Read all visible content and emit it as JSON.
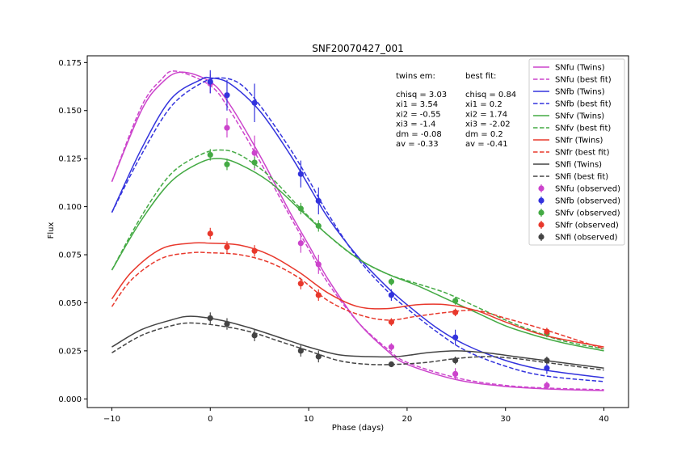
{
  "chart_data": {
    "type": "line",
    "title": "SNF20070427_001",
    "xlabel": "Phase (days)",
    "ylabel": "Flux",
    "xlim": [
      -12.5,
      42.5
    ],
    "ylim": [
      -0.0045,
      0.1785
    ],
    "xticks": [
      -10,
      0,
      10,
      20,
      30,
      40
    ],
    "xtick_labels": [
      "−10",
      "0",
      "10",
      "20",
      "30",
      "40"
    ],
    "yticks": [
      0.0,
      0.025,
      0.05,
      0.075,
      0.1,
      0.125,
      0.15,
      0.175
    ],
    "ytick_labels": [
      "0.000",
      "0.025",
      "0.050",
      "0.075",
      "0.100",
      "0.125",
      "0.150",
      "0.175"
    ],
    "grid": false,
    "legend_placement": "top-right",
    "annotations": [
      {
        "heading": "twins em:",
        "lines": [
          "chisq = 3.03",
          "xi1 = 3.54",
          "xi2 = -0.55",
          "xi3 = -1.4",
          "dm = -0.08",
          "av = -0.33"
        ]
      },
      {
        "heading": "best fit:",
        "lines": [
          "chisq = 0.84",
          "xi1 = 0.2",
          "xi2 = 1.74",
          "xi3 = -2.02",
          "dm = 0.2",
          "av = -0.41"
        ]
      }
    ],
    "bands": [
      {
        "band": "SNfu",
        "color": "#cc44cc",
        "twins": {
          "name": "SNfu (Twins)",
          "x": [
            -10,
            -7,
            -5,
            -3,
            0,
            2,
            5,
            8,
            10,
            12,
            15,
            18,
            20,
            25,
            30,
            35,
            40
          ],
          "y": [
            0.113,
            0.15,
            0.164,
            0.17,
            0.165,
            0.153,
            0.127,
            0.098,
            0.08,
            0.062,
            0.04,
            0.025,
            0.018,
            0.01,
            0.0065,
            0.005,
            0.0043
          ]
        },
        "best_fit": {
          "name": "SNfu (best fit)",
          "x": [
            -10,
            -7,
            -5,
            -3.5,
            0,
            2,
            5,
            8,
            10,
            12,
            15,
            18,
            20,
            25,
            30,
            35,
            40
          ],
          "y": [
            0.113,
            0.152,
            0.166,
            0.1705,
            0.163,
            0.15,
            0.124,
            0.096,
            0.078,
            0.06,
            0.04,
            0.026,
            0.019,
            0.011,
            0.007,
            0.0055,
            0.0048
          ]
        },
        "observed": {
          "name": "SNfu (observed)",
          "x": [
            0,
            1.7,
            4.5,
            9.2,
            11,
            18.4,
            24.9,
            34.2
          ],
          "y": [
            0.164,
            0.141,
            0.128,
            0.081,
            0.07,
            0.027,
            0.013,
            0.007
          ],
          "err": [
            0.005,
            0.005,
            0.009,
            0.005,
            0.005,
            0.002,
            0.003,
            0.002
          ]
        }
      },
      {
        "band": "SNfb",
        "color": "#3333dd",
        "twins": {
          "name": "SNfb (Twins)",
          "x": [
            -10,
            -7,
            -4,
            -1,
            0,
            2,
            5,
            8,
            10,
            12,
            15,
            18,
            20,
            23,
            26,
            30,
            34,
            40
          ],
          "y": [
            0.097,
            0.13,
            0.156,
            0.166,
            0.167,
            0.164,
            0.15,
            0.128,
            0.111,
            0.094,
            0.074,
            0.058,
            0.049,
            0.037,
            0.028,
            0.02,
            0.015,
            0.011
          ]
        },
        "best_fit": {
          "name": "SNfb (best fit)",
          "x": [
            -10,
            -7,
            -4,
            -1,
            1,
            3,
            5,
            8,
            10,
            12,
            15,
            18,
            20,
            23,
            26,
            30,
            34,
            40
          ],
          "y": [
            0.097,
            0.127,
            0.152,
            0.164,
            0.167,
            0.164,
            0.153,
            0.131,
            0.114,
            0.096,
            0.073,
            0.056,
            0.047,
            0.035,
            0.025,
            0.017,
            0.012,
            0.009
          ]
        },
        "observed": {
          "name": "SNfb (observed)",
          "x": [
            0,
            1.7,
            4.5,
            9.2,
            11,
            18.4,
            24.9,
            34.2
          ],
          "y": [
            0.165,
            0.158,
            0.154,
            0.117,
            0.103,
            0.054,
            0.032,
            0.016
          ],
          "err": [
            0.006,
            0.008,
            0.01,
            0.007,
            0.007,
            0.003,
            0.004,
            0.003
          ]
        }
      },
      {
        "band": "SNfv",
        "color": "#44aa44",
        "twins": {
          "name": "SNfv (Twins)",
          "x": [
            -10,
            -7,
            -4,
            -1,
            1,
            3,
            6,
            9,
            12,
            15,
            18,
            21,
            24,
            27,
            30,
            33,
            36,
            40
          ],
          "y": [
            0.067,
            0.093,
            0.113,
            0.123,
            0.125,
            0.122,
            0.113,
            0.099,
            0.085,
            0.073,
            0.065,
            0.059,
            0.052,
            0.045,
            0.038,
            0.033,
            0.029,
            0.025
          ]
        },
        "best_fit": {
          "name": "SNfv (best fit)",
          "x": [
            -10,
            -7,
            -4,
            -1,
            1,
            3,
            6,
            9,
            12,
            15,
            18,
            21,
            24,
            27,
            30,
            33,
            36,
            40
          ],
          "y": [
            0.067,
            0.095,
            0.117,
            0.127,
            0.1295,
            0.127,
            0.116,
            0.1,
            0.085,
            0.073,
            0.065,
            0.06,
            0.055,
            0.048,
            0.041,
            0.035,
            0.03,
            0.026
          ]
        },
        "observed": {
          "name": "SNfv (observed)",
          "x": [
            0,
            1.7,
            4.5,
            9.2,
            11,
            18.4,
            24.9,
            34.2
          ],
          "y": [
            0.127,
            0.122,
            0.123,
            0.099,
            0.09,
            0.061,
            0.051,
            0.034
          ],
          "err": [
            0.003,
            0.003,
            0.003,
            0.003,
            0.003,
            0.002,
            0.002,
            0.002
          ]
        }
      },
      {
        "band": "SNfr",
        "color": "#e8382c",
        "twins": {
          "name": "SNfr (Twins)",
          "x": [
            -10,
            -8,
            -5,
            -2,
            0,
            3,
            6,
            9,
            12,
            15,
            18,
            21,
            24,
            27,
            30,
            34,
            40
          ],
          "y": [
            0.052,
            0.066,
            0.078,
            0.081,
            0.081,
            0.08,
            0.075,
            0.066,
            0.055,
            0.048,
            0.047,
            0.049,
            0.049,
            0.046,
            0.04,
            0.033,
            0.027
          ]
        },
        "best_fit": {
          "name": "SNfr (best fit)",
          "x": [
            -10,
            -8,
            -5,
            -2,
            0,
            3,
            6,
            9,
            12,
            15,
            18,
            21,
            24,
            27,
            30,
            34,
            40
          ],
          "y": [
            0.048,
            0.062,
            0.073,
            0.076,
            0.076,
            0.075,
            0.071,
            0.063,
            0.051,
            0.044,
            0.041,
            0.043,
            0.045,
            0.046,
            0.042,
            0.036,
            0.026
          ]
        },
        "observed": {
          "name": "SNfr (observed)",
          "x": [
            0,
            1.7,
            4.5,
            9.2,
            11,
            18.4,
            24.9,
            34.2
          ],
          "y": [
            0.086,
            0.079,
            0.077,
            0.06,
            0.054,
            0.04,
            0.045,
            0.035
          ],
          "err": [
            0.003,
            0.003,
            0.003,
            0.003,
            0.003,
            0.002,
            0.002,
            0.002
          ]
        }
      },
      {
        "band": "SNfi",
        "color": "#444444",
        "twins": {
          "name": "SNfi (Twins)",
          "x": [
            -10,
            -7,
            -4,
            -2,
            1,
            4,
            7,
            10,
            13,
            16,
            19,
            22,
            25,
            28,
            31,
            34,
            37,
            40
          ],
          "y": [
            0.027,
            0.036,
            0.041,
            0.043,
            0.041,
            0.037,
            0.032,
            0.027,
            0.023,
            0.022,
            0.022,
            0.024,
            0.025,
            0.024,
            0.022,
            0.02,
            0.018,
            0.016
          ]
        },
        "best_fit": {
          "name": "SNfi (best fit)",
          "x": [
            -10,
            -7,
            -4,
            -2,
            1,
            4,
            7,
            10,
            13,
            16,
            19,
            22,
            25,
            28,
            31,
            34,
            37,
            40
          ],
          "y": [
            0.024,
            0.033,
            0.038,
            0.0395,
            0.038,
            0.035,
            0.03,
            0.025,
            0.02,
            0.018,
            0.018,
            0.019,
            0.021,
            0.022,
            0.021,
            0.019,
            0.017,
            0.015
          ]
        },
        "observed": {
          "name": "SNfi (observed)",
          "x": [
            0,
            1.7,
            4.5,
            9.2,
            11,
            18.4,
            24.9,
            34.2
          ],
          "y": [
            0.042,
            0.039,
            0.033,
            0.025,
            0.022,
            0.018,
            0.02,
            0.02
          ],
          "err": [
            0.003,
            0.003,
            0.003,
            0.003,
            0.003,
            0.001,
            0.002,
            0.002
          ]
        }
      }
    ]
  }
}
